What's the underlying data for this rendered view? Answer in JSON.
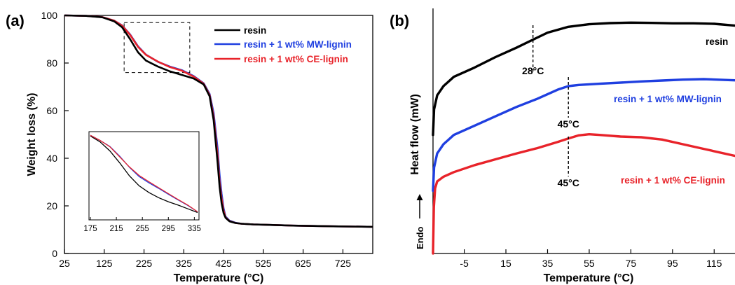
{
  "panels": {
    "a": {
      "label": "(a)"
    },
    "b": {
      "label": "(b)",
      "endo_label": "Endo"
    }
  },
  "colors": {
    "resin": "#000000",
    "mw": "#1f3fe0",
    "ce": "#e8232a"
  },
  "chart_data": [
    {
      "type": "line",
      "panel": "a",
      "xlabel": "Temperature (°C)",
      "ylabel": "Weight loss (%)",
      "xlim": [
        25,
        800
      ],
      "ylim": [
        0,
        100
      ],
      "x_ticks": [
        25,
        125,
        225,
        325,
        425,
        525,
        625,
        725
      ],
      "y_ticks": [
        0,
        20,
        40,
        60,
        80,
        100
      ],
      "legend": {
        "placement": "top-right",
        "entries": [
          "resin",
          "resin + 1 wt% MW-lignin",
          "resin + 1 wt% CE-lignin"
        ]
      },
      "zoom_box": {
        "x": [
          175,
          340
        ],
        "y": [
          76,
          97
        ]
      },
      "series": [
        {
          "name": "resin",
          "color": "#000000",
          "x": [
            25,
            80,
            120,
            150,
            170,
            190,
            210,
            230,
            260,
            290,
            320,
            350,
            375,
            390,
            400,
            410,
            415,
            420,
            425,
            430,
            440,
            455,
            470,
            500,
            600,
            700,
            800
          ],
          "y": [
            100,
            99.8,
            99.2,
            97.5,
            95,
            90,
            84.5,
            81,
            78.5,
            76.5,
            75,
            73.5,
            71,
            66,
            56,
            38,
            28,
            21,
            17,
            15,
            13.5,
            12.8,
            12.5,
            12.2,
            11.7,
            11.4,
            11.2
          ]
        },
        {
          "name": "resin + 1 wt% MW-lignin",
          "color": "#1f3fe0",
          "x": [
            25,
            80,
            120,
            150,
            170,
            190,
            210,
            230,
            260,
            290,
            320,
            350,
            375,
            390,
            400,
            410,
            415,
            420,
            425,
            430,
            440,
            455,
            470,
            500,
            600,
            700,
            800
          ],
          "y": [
            100,
            99.8,
            99.3,
            97.8,
            95.8,
            92,
            87,
            83.5,
            80.5,
            78.5,
            77,
            74.5,
            71.5,
            67,
            59,
            44,
            33,
            25,
            19,
            15.5,
            13.8,
            12.9,
            12.5,
            12.2,
            11.7,
            11.4,
            11.2
          ]
        },
        {
          "name": "resin + 1 wt% CE-lignin",
          "color": "#e8232a",
          "x": [
            25,
            80,
            120,
            150,
            170,
            190,
            210,
            230,
            260,
            290,
            320,
            350,
            375,
            390,
            400,
            410,
            415,
            420,
            425,
            430,
            440,
            455,
            470,
            500,
            600,
            700,
            800
          ],
          "y": [
            100,
            99.8,
            99.3,
            97.8,
            95.7,
            91.8,
            86.8,
            83.4,
            80.6,
            78.3,
            76.8,
            74.3,
            71.3,
            66.5,
            57.5,
            41,
            30,
            23,
            18,
            15.2,
            13.6,
            12.8,
            12.5,
            12.2,
            11.7,
            11.4,
            11.2
          ]
        }
      ],
      "inset": {
        "x_ticks": [
          175,
          215,
          255,
          295,
          335
        ],
        "xlim": [
          175,
          340
        ],
        "ylim": [
          75,
          98
        ],
        "series": [
          {
            "name": "resin",
            "color": "#000000",
            "x": [
              175,
              190,
              205,
              220,
              235,
              250,
              265,
              280,
              295,
              310,
              325,
              340
            ],
            "y": [
              97.2,
              95.6,
              93.2,
              90,
              86.5,
              83.8,
              82,
              80.6,
              79.5,
              78.6,
              77.6,
              76.6
            ]
          },
          {
            "name": "resin + 1 wt% MW-lignin",
            "color": "#1f3fe0",
            "x": [
              175,
              190,
              205,
              220,
              235,
              250,
              265,
              280,
              295,
              310,
              325,
              340
            ],
            "y": [
              97.4,
              96,
              94.4,
              91.8,
              88.8,
              86.3,
              84.6,
              83.1,
              81.5,
              80,
              78.5,
              76.8
            ]
          },
          {
            "name": "resin + 1 wt% CE-lignin",
            "color": "#e8232a",
            "x": [
              175,
              190,
              205,
              220,
              235,
              250,
              265,
              280,
              295,
              310,
              325,
              340
            ],
            "y": [
              97.4,
              96,
              94.3,
              91.6,
              88.9,
              86.6,
              84.9,
              83.3,
              81.7,
              80.1,
              78.6,
              76.8
            ]
          }
        ]
      }
    },
    {
      "type": "line",
      "panel": "b",
      "xlabel": "Temperature (°C)",
      "ylabel": "Heat flow (mW)",
      "xlim": [
        -20,
        125
      ],
      "x_ticks": [
        -5,
        15,
        35,
        55,
        75,
        95,
        115
      ],
      "ylim": [
        0,
        100
      ],
      "annotations": [
        {
          "text": "28°C",
          "x": 28,
          "color": "#000000"
        },
        {
          "text": "45°C",
          "x": 45,
          "color": "#000000"
        },
        {
          "text": "45°C",
          "x": 45,
          "color": "#000000"
        }
      ],
      "series": [
        {
          "name": "resin",
          "color": "#000000",
          "x": [
            -20,
            -19.5,
            -18,
            -15,
            -10,
            0,
            10,
            20,
            28,
            35,
            45,
            55,
            65,
            75,
            85,
            95,
            105,
            115,
            125
          ],
          "y": [
            51,
            62,
            68,
            72,
            76,
            80,
            84.5,
            88.5,
            92,
            95,
            97.5,
            98.6,
            99.1,
            99.3,
            99.2,
            99,
            99,
            98.8,
            98
          ]
        },
        {
          "name": "resin + 1 wt% MW-lignin",
          "color": "#1f3fe0",
          "x": [
            -20,
            -19.5,
            -18,
            -15,
            -10,
            0,
            10,
            20,
            30,
            40,
            45,
            50,
            60,
            70,
            80,
            90,
            100,
            110,
            125
          ],
          "y": [
            27,
            37,
            43,
            47,
            51,
            55,
            59,
            63,
            66.5,
            70.5,
            72,
            72.5,
            73,
            73.5,
            74,
            74.4,
            74.8,
            75,
            74.5
          ]
        },
        {
          "name": "resin + 1 wt% CE-lignin",
          "color": "#e8232a",
          "x": [
            -20,
            -19.6,
            -19,
            -18,
            -15,
            -10,
            0,
            10,
            20,
            30,
            40,
            45,
            50,
            55,
            60,
            70,
            80,
            90,
            100,
            110,
            125
          ],
          "y": [
            0,
            20,
            28,
            31,
            33,
            35,
            38,
            40.5,
            43,
            45.3,
            48,
            49.5,
            50.8,
            51.3,
            51,
            50.3,
            50,
            49,
            47,
            45,
            42
          ]
        }
      ],
      "labels": [
        {
          "text": "resin",
          "series": "resin"
        },
        {
          "text": "resin + 1 wt% MW-lignin",
          "series": "resin + 1 wt% MW-lignin"
        },
        {
          "text": "resin + 1 wt% CE-lignin",
          "series": "resin + 1 wt% CE-lignin"
        }
      ]
    }
  ]
}
